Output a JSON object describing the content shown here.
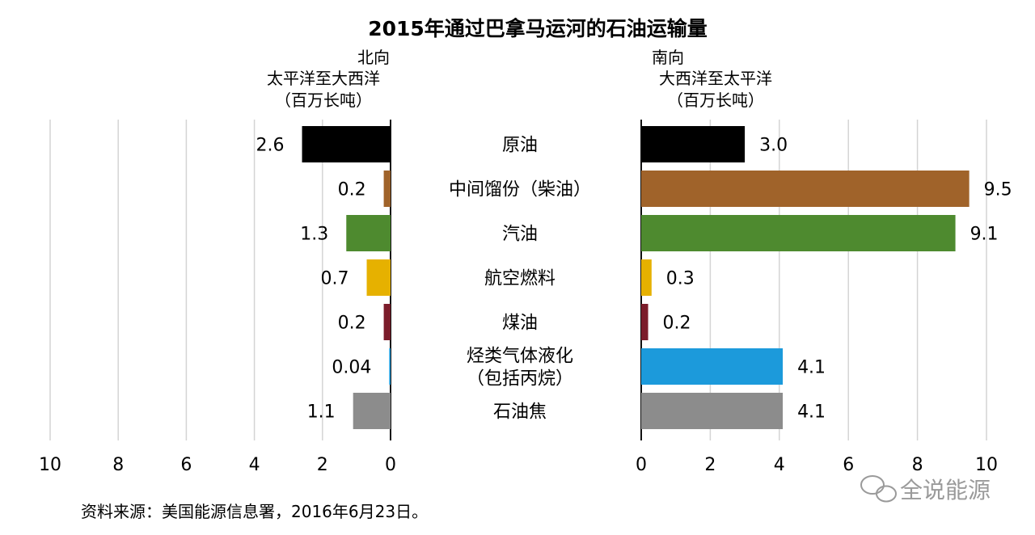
{
  "chart_data": {
    "type": "bar",
    "title": "2015年通过巴拿马运河的石油运输量",
    "categories": [
      "原油",
      "中间馏份（柴油）",
      "汽油",
      "航空燃料",
      "煤油",
      "烃类气体液化\n（包括丙烷）",
      "石油焦"
    ],
    "colors": [
      "#000000",
      "#A0632A",
      "#4E8A2F",
      "#E6B100",
      "#7B1C2A",
      "#1C9ADB",
      "#8C8C8C"
    ],
    "panels": [
      {
        "name": "北向",
        "header": [
          "北向",
          "太平洋至大西洋",
          "（百万长吨）"
        ],
        "direction": "left",
        "values": [
          2.6,
          0.2,
          1.3,
          0.7,
          0.2,
          0.04,
          1.1
        ],
        "value_labels": [
          "2.6",
          "0.2",
          "1.3",
          "0.7",
          "0.2",
          "0.04",
          "1.1"
        ],
        "xlim": [
          0,
          10
        ],
        "ticks": [
          "10",
          "8",
          "6",
          "4",
          "2",
          "0"
        ]
      },
      {
        "name": "南向",
        "header": [
          "南向",
          "大西洋至太平洋",
          "（百万长吨）"
        ],
        "direction": "right",
        "values": [
          3.0,
          9.5,
          9.1,
          0.3,
          0.2,
          4.1,
          4.1
        ],
        "value_labels": [
          "3.0",
          "9.5",
          "9.1",
          "0.3",
          "0.2",
          "4.1",
          "4.1"
        ],
        "xlim": [
          0,
          10
        ],
        "ticks": [
          "0",
          "2",
          "4",
          "6",
          "8",
          "10"
        ]
      }
    ],
    "grid": true
  },
  "footer": {
    "source": "资料来源：美国能源信息署，2016年6月23日。",
    "brand": "全说能源"
  }
}
